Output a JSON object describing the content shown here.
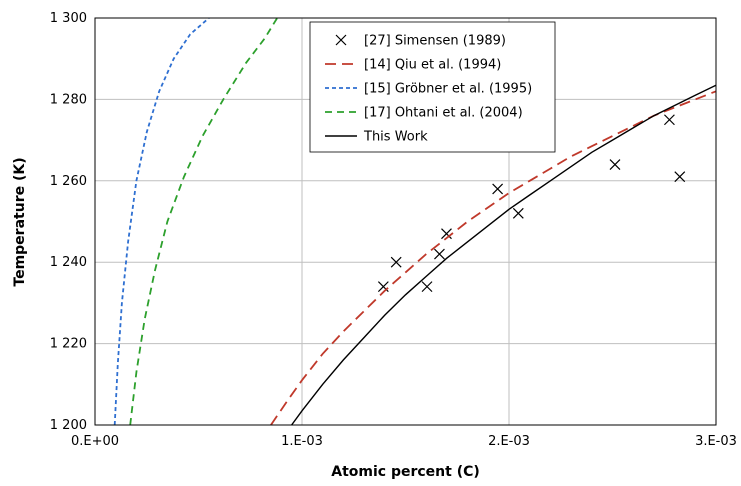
{
  "chart_data": {
    "type": "line",
    "xlabel": "Atomic percent (C)",
    "ylabel": "Temperature (K)",
    "xlim": [
      0,
      0.003
    ],
    "ylim": [
      1200,
      1300
    ],
    "x_ticks": [
      {
        "value": 0,
        "label": "0.E+00"
      },
      {
        "value": 0.001,
        "label": "1.E-03"
      },
      {
        "value": 0.002,
        "label": "2.E-03"
      },
      {
        "value": 0.003,
        "label": "3.E-03"
      }
    ],
    "y_ticks": [
      {
        "value": 1200,
        "label": "1 200"
      },
      {
        "value": 1220,
        "label": "1 220"
      },
      {
        "value": 1240,
        "label": "1 240"
      },
      {
        "value": 1260,
        "label": "1 260"
      },
      {
        "value": 1280,
        "label": "1 280"
      },
      {
        "value": 1300,
        "label": "1 300"
      }
    ],
    "grid": true,
    "legend_position": "top-center",
    "series": [
      {
        "name": "[27] Simensen (1989)",
        "style": "markers-x",
        "color": "#000000",
        "points": [
          [
            0.001393,
            1234
          ],
          [
            0.001455,
            1240
          ],
          [
            0.001604,
            1234
          ],
          [
            0.001664,
            1242
          ],
          [
            0.001698,
            1247
          ],
          [
            0.001945,
            1258
          ],
          [
            0.002045,
            1252
          ],
          [
            0.002512,
            1264
          ],
          [
            0.002775,
            1275
          ],
          [
            0.002825,
            1261
          ]
        ]
      },
      {
        "name": "[14] Qiu et al. (1994)",
        "style": "long-dash",
        "color": "#c0392b",
        "points": [
          [
            0.00085,
            1200
          ],
          [
            0.00093,
            1206
          ],
          [
            0.001,
            1211
          ],
          [
            0.0011,
            1217.5
          ],
          [
            0.0012,
            1223
          ],
          [
            0.0013,
            1228
          ],
          [
            0.0014,
            1233
          ],
          [
            0.0015,
            1237.5
          ],
          [
            0.0016,
            1242
          ],
          [
            0.0017,
            1246
          ],
          [
            0.0018,
            1250
          ],
          [
            0.0019,
            1253.5
          ],
          [
            0.002,
            1257
          ],
          [
            0.0021,
            1260
          ],
          [
            0.0022,
            1263
          ],
          [
            0.0023,
            1266
          ],
          [
            0.0024,
            1268.5
          ],
          [
            0.0025,
            1271
          ],
          [
            0.0026,
            1273.5
          ],
          [
            0.0027,
            1276
          ],
          [
            0.0028,
            1278
          ],
          [
            0.0029,
            1280
          ],
          [
            0.003,
            1282
          ]
        ]
      },
      {
        "name": "[15] Gröbner et al. (1995)",
        "style": "short-dash",
        "color": "#2e6fd1",
        "points": [
          [
            9.5e-05,
            1200
          ],
          [
            0.00011,
            1215
          ],
          [
            0.00013,
            1230
          ],
          [
            0.00016,
            1245
          ],
          [
            0.0002,
            1260
          ],
          [
            0.00025,
            1272
          ],
          [
            0.00031,
            1282
          ],
          [
            0.00038,
            1290
          ],
          [
            0.00046,
            1296
          ],
          [
            0.00055,
            1300
          ]
        ]
      },
      {
        "name": "[17] Ohtani et al. (2004)",
        "style": "dash",
        "color": "#2ca02c",
        "points": [
          [
            0.00017,
            1200
          ],
          [
            0.0002,
            1213
          ],
          [
            0.00024,
            1226
          ],
          [
            0.00029,
            1238
          ],
          [
            0.00035,
            1250
          ],
          [
            0.00043,
            1261
          ],
          [
            0.00052,
            1271
          ],
          [
            0.00062,
            1280
          ],
          [
            0.00073,
            1289
          ],
          [
            0.00082,
            1295
          ],
          [
            0.00088,
            1300
          ]
        ]
      },
      {
        "name": "This Work",
        "style": "solid",
        "color": "#000000",
        "points": [
          [
            0.00095,
            1200
          ],
          [
            0.001,
            1203.5
          ],
          [
            0.0011,
            1210
          ],
          [
            0.0012,
            1216
          ],
          [
            0.0013,
            1221.5
          ],
          [
            0.0014,
            1227
          ],
          [
            0.0015,
            1232
          ],
          [
            0.0016,
            1236.5
          ],
          [
            0.0017,
            1241
          ],
          [
            0.0018,
            1245
          ],
          [
            0.0019,
            1249
          ],
          [
            0.002,
            1253
          ],
          [
            0.0021,
            1256.5
          ],
          [
            0.0022,
            1260
          ],
          [
            0.0023,
            1263.5
          ],
          [
            0.0024,
            1267
          ],
          [
            0.0025,
            1270
          ],
          [
            0.0026,
            1273
          ],
          [
            0.0027,
            1276
          ],
          [
            0.0028,
            1278.5
          ],
          [
            0.0029,
            1281
          ],
          [
            0.003,
            1283.5
          ]
        ]
      }
    ]
  }
}
